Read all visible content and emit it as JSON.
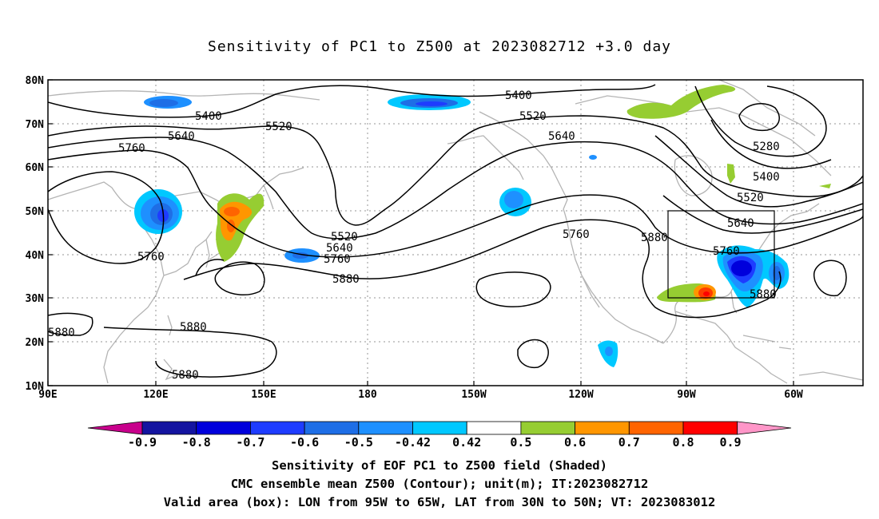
{
  "title": "Sensitivity of PC1 to Z500 at 2023082712 +3.0 day",
  "map": {
    "lon_labels": [
      "90E",
      "120E",
      "150E",
      "180",
      "150W",
      "120W",
      "90W",
      "60W"
    ],
    "lat_labels": [
      "80N",
      "70N",
      "60N",
      "50N",
      "40N",
      "30N",
      "20N",
      "10N"
    ],
    "contour_levels": [
      "5280",
      "5400",
      "5520",
      "5640",
      "5760",
      "5880"
    ],
    "contour_labels": [
      "5400",
      "5520",
      "5640",
      "5760",
      "5760",
      "5880",
      "5880",
      "5880",
      "5520",
      "5640",
      "5760",
      "5400",
      "5520",
      "5640",
      "5760",
      "5880",
      "5280",
      "5400",
      "5520",
      "5640",
      "5760",
      "5880"
    ],
    "valid_box": {
      "lon_from": "95W",
      "lon_to": "65W",
      "lat_from": "30N",
      "lat_to": "50N"
    }
  },
  "colorbar": {
    "labels": [
      "-0.9",
      "-0.8",
      "-0.7",
      "-0.6",
      "-0.5",
      "-0.42",
      "0.42",
      "0.5",
      "0.6",
      "0.7",
      "0.8",
      "0.9"
    ],
    "colors": [
      "#c8008c",
      "#1414a0",
      "#0000dc",
      "#1e3cff",
      "#1e6ee6",
      "#1e90ff",
      "#00c8ff",
      "#ffffff",
      "#96cd32",
      "#ff9600",
      "#ff6400",
      "#ff3c00",
      "#ff0000",
      "#ff96c8"
    ]
  },
  "captions": {
    "line1": "Sensitivity of EOF PC1 to Z500 field (Shaded)",
    "line2": "CMC ensemble mean Z500 (Contour); unit(m); IT:2023082712",
    "line3": "Valid area (box): LON from 95W to 65W, LAT from 30N to 50N; VT: 2023083012"
  }
}
